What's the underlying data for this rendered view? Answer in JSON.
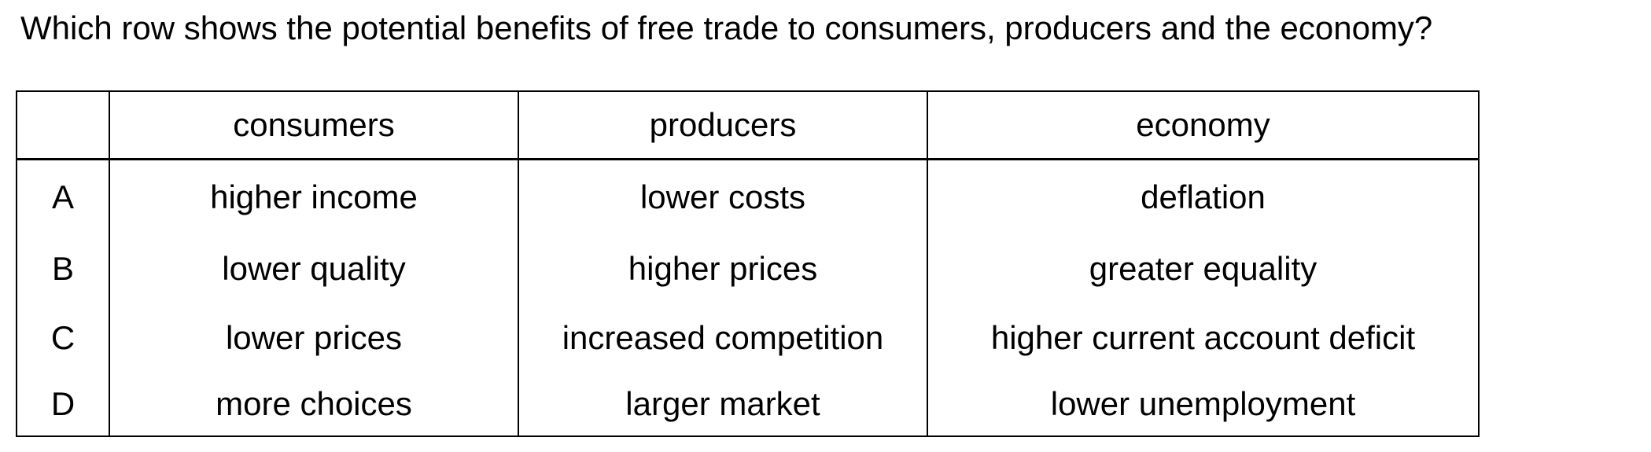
{
  "question": "Which row shows the potential benefits of free trade to consumers, producers and the economy?",
  "table": {
    "headers": [
      "",
      "consumers",
      "producers",
      "economy"
    ],
    "rows": [
      {
        "letter": "A",
        "consumers": "higher income",
        "producers": "lower costs",
        "economy": "deflation"
      },
      {
        "letter": "B",
        "consumers": "lower quality",
        "producers": "higher prices",
        "economy": "greater equality"
      },
      {
        "letter": "C",
        "consumers": "lower prices",
        "producers": "increased competition",
        "economy": "higher current account deficit"
      },
      {
        "letter": "D",
        "consumers": "more choices",
        "producers": "larger market",
        "economy": "lower unemployment"
      }
    ]
  }
}
